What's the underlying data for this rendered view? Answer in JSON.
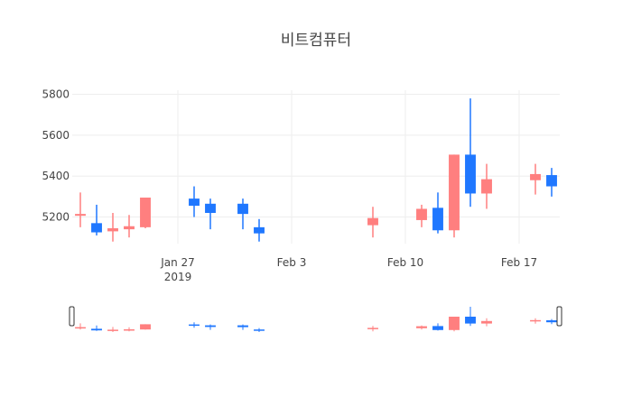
{
  "chart_data": {
    "type": "candlestick",
    "title": "비트컴퓨터",
    "xlabel": "",
    "ylabel": "",
    "ylim": [
      5070,
      5820
    ],
    "yticks": [
      5200,
      5400,
      5600,
      5800
    ],
    "xticks": [
      {
        "date": "2019-01-27",
        "label": "Jan 27",
        "sublabel": "2019"
      },
      {
        "date": "2019-02-03",
        "label": "Feb 3",
        "sublabel": ""
      },
      {
        "date": "2019-02-10",
        "label": "Feb 10",
        "sublabel": ""
      },
      {
        "date": "2019-02-17",
        "label": "Feb 17",
        "sublabel": ""
      }
    ],
    "x_range": [
      "2019-01-21",
      "2019-02-19"
    ],
    "increasing_color": "#ff7f7f",
    "decreasing_color": "#1f77ff",
    "rangeslider": true,
    "candles": [
      {
        "date": "2019-01-21",
        "open": 5210,
        "high": 5320,
        "low": 5150,
        "close": 5215
      },
      {
        "date": "2019-01-22",
        "open": 5170,
        "high": 5260,
        "low": 5110,
        "close": 5125
      },
      {
        "date": "2019-01-23",
        "open": 5130,
        "high": 5220,
        "low": 5080,
        "close": 5145
      },
      {
        "date": "2019-01-24",
        "open": 5140,
        "high": 5210,
        "low": 5100,
        "close": 5155
      },
      {
        "date": "2019-01-25",
        "open": 5150,
        "high": 5295,
        "low": 5145,
        "close": 5295
      },
      {
        "date": "2019-01-28",
        "open": 5290,
        "high": 5350,
        "low": 5200,
        "close": 5255
      },
      {
        "date": "2019-01-29",
        "open": 5265,
        "high": 5290,
        "low": 5140,
        "close": 5220
      },
      {
        "date": "2019-01-31",
        "open": 5265,
        "high": 5290,
        "low": 5140,
        "close": 5215
      },
      {
        "date": "2019-02-01",
        "open": 5150,
        "high": 5190,
        "low": 5080,
        "close": 5120
      },
      {
        "date": "2019-02-08",
        "open": 5160,
        "high": 5250,
        "low": 5100,
        "close": 5195
      },
      {
        "date": "2019-02-11",
        "open": 5185,
        "high": 5260,
        "low": 5150,
        "close": 5240
      },
      {
        "date": "2019-02-12",
        "open": 5245,
        "high": 5320,
        "low": 5120,
        "close": 5135
      },
      {
        "date": "2019-02-13",
        "open": 5135,
        "high": 5505,
        "low": 5100,
        "close": 5505
      },
      {
        "date": "2019-02-14",
        "open": 5505,
        "high": 5780,
        "low": 5250,
        "close": 5315
      },
      {
        "date": "2019-02-15",
        "open": 5315,
        "high": 5460,
        "low": 5240,
        "close": 5385
      },
      {
        "date": "2019-02-18",
        "open": 5380,
        "high": 5460,
        "low": 5310,
        "close": 5410
      },
      {
        "date": "2019-02-19",
        "open": 5405,
        "high": 5440,
        "low": 5300,
        "close": 5350
      }
    ]
  }
}
